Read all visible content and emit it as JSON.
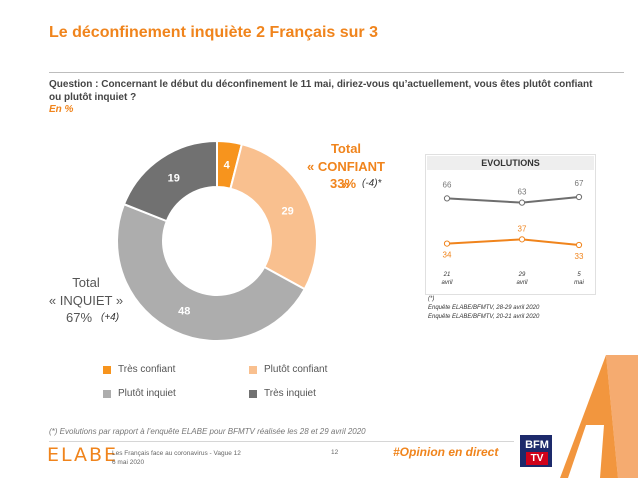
{
  "title": "Le déconfinement inquiète 2 Français sur 3",
  "question": "Question : Concernant le début du déconfinement le 11 mai, diriez-vous qu’actuellement, vous êtes plutôt confiant ou plutôt inquiet ?",
  "unit_note": "En %",
  "totals": {
    "confiant": {
      "label": "Total\n« CONFIANT »",
      "pct": "33%",
      "evolution": "(-4)*"
    },
    "inquiet": {
      "label": "Total\n« INQUIET »",
      "pct": "67%",
      "evolution": "(+4)"
    }
  },
  "colors": {
    "accent": "#f0841c",
    "tres_confiant": "#f7941d",
    "plutot_confiant": "#f9c08f",
    "plutot_inquiet": "#adadad",
    "tres_inquiet": "#717171",
    "line_inquiet": "#6e6e6e",
    "line_confiant": "#f0841c"
  },
  "chart_data": [
    {
      "type": "pie",
      "style": "donut",
      "categories": [
        "Très confiant",
        "Plutôt confiant",
        "Plutôt inquiet",
        "Très inquiet"
      ],
      "values": [
        4,
        29,
        48,
        19
      ],
      "labels": [
        "4",
        "29",
        "48",
        "19"
      ],
      "legend_placement": "bottom"
    },
    {
      "type": "line",
      "title": "EVOLUTIONS",
      "x": [
        "21\navril",
        "29\navril",
        "5\nmai"
      ],
      "series": [
        {
          "values": [
            66,
            63,
            67
          ],
          "labels": [
            "66",
            "63",
            "67"
          ]
        },
        {
          "values": [
            34,
            37,
            33
          ],
          "labels": [
            "34",
            "37",
            "33"
          ]
        }
      ],
      "notes": [
        "(*)",
        "Enquête ELABE/BFMTV, 28-29 avril 2020",
        "Enquête ELABE/BFMTV, 20-21 avril 2020"
      ]
    }
  ],
  "footnote": "(*) Evolutions par rapport à l’enquête ELABE pour BFMTV réalisée les 28 et 29 avril 2020",
  "footer": {
    "logo": "ELABE",
    "survey": "Les Français face au coronavirus - Vague 12",
    "date": "6 mai 2020",
    "page": "12",
    "hashtag": "#Opinion en direct",
    "bfm_top": "BFM",
    "bfm_tv": "TV"
  }
}
